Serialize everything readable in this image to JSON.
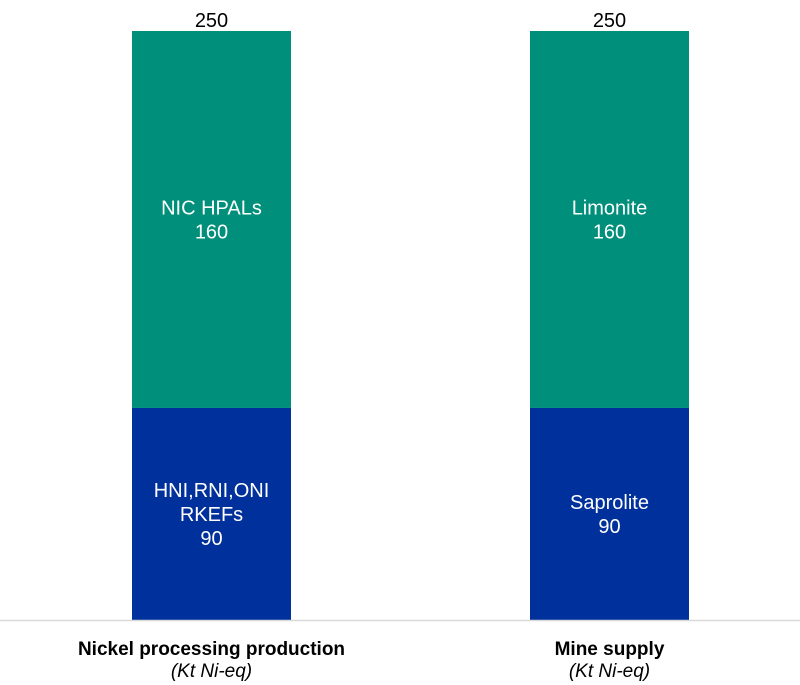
{
  "chart_data": {
    "type": "bar",
    "stacked": true,
    "categories": [
      {
        "label": "Nickel processing production",
        "unit": "(Kt Ni-eq)",
        "total": 250
      },
      {
        "label": "Mine supply",
        "unit": "(Kt Ni-eq)",
        "total": 250
      }
    ],
    "series": [
      {
        "color": "#008F7A",
        "values": [
          160,
          160
        ],
        "segment_labels": [
          [
            "NIC HPALs"
          ],
          [
            "Limonite"
          ]
        ]
      },
      {
        "color": "#00309B",
        "values": [
          90,
          90
        ],
        "segment_labels": [
          [
            "HNI,RNI,ONI",
            "RKEFs"
          ],
          [
            "Saprolite"
          ]
        ]
      }
    ],
    "stack_order": "bottom-to-top: series[1], series[0]",
    "ylim": [
      0,
      250
    ],
    "grid": false,
    "legend": "none"
  }
}
